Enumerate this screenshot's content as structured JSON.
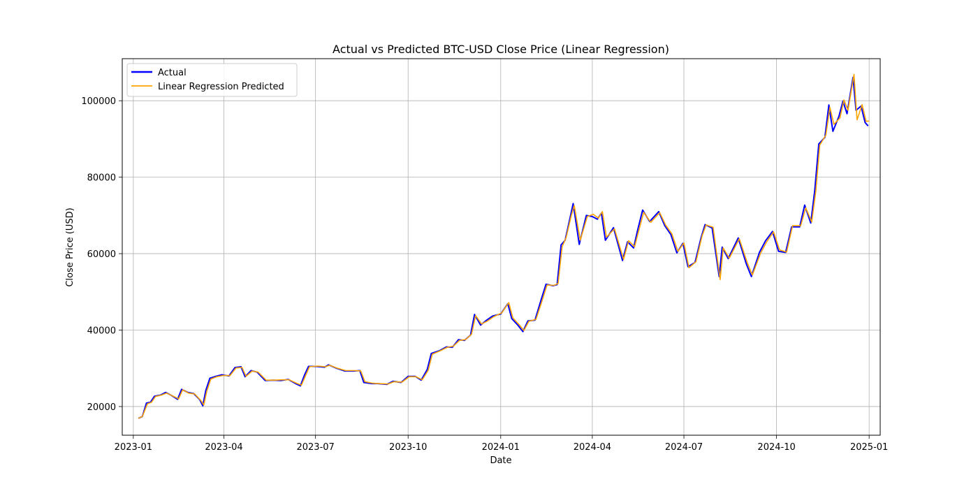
{
  "chart_data": {
    "type": "line",
    "title": "Actual vs Predicted BTC-USD Close Price (Linear Regression)",
    "xlabel": "Date",
    "ylabel": "Close Price (USD)",
    "xlim": [
      "2022-12-21",
      "2025-01-12"
    ],
    "ylim": [
      12500,
      111000
    ],
    "grid": true,
    "legend_position": "top-left",
    "x_ticks": [
      "2023-01",
      "2023-04",
      "2023-07",
      "2023-10",
      "2024-01",
      "2024-04",
      "2024-07",
      "2024-10",
      "2025-01"
    ],
    "y_ticks": [
      20000,
      40000,
      60000,
      80000,
      100000
    ],
    "series": [
      {
        "name": "Actual",
        "color": "#0000ff",
        "points": [
          [
            "2023-01-06",
            16900
          ],
          [
            "2023-01-10",
            17400
          ],
          [
            "2023-01-14",
            20900
          ],
          [
            "2023-01-18",
            21100
          ],
          [
            "2023-01-22",
            22700
          ],
          [
            "2023-01-28",
            23000
          ],
          [
            "2023-02-02",
            23700
          ],
          [
            "2023-02-08",
            22900
          ],
          [
            "2023-02-14",
            21900
          ],
          [
            "2023-02-18",
            24500
          ],
          [
            "2023-02-24",
            23700
          ],
          [
            "2023-03-02",
            23400
          ],
          [
            "2023-03-08",
            21800
          ],
          [
            "2023-03-11",
            20200
          ],
          [
            "2023-03-14",
            24200
          ],
          [
            "2023-03-18",
            27400
          ],
          [
            "2023-03-24",
            27900
          ],
          [
            "2023-03-30",
            28300
          ],
          [
            "2023-04-06",
            28000
          ],
          [
            "2023-04-12",
            30200
          ],
          [
            "2023-04-18",
            30400
          ],
          [
            "2023-04-22",
            27800
          ],
          [
            "2023-04-28",
            29400
          ],
          [
            "2023-05-04",
            29000
          ],
          [
            "2023-05-12",
            26800
          ],
          [
            "2023-05-20",
            26900
          ],
          [
            "2023-05-28",
            26800
          ],
          [
            "2023-06-04",
            27100
          ],
          [
            "2023-06-12",
            25900
          ],
          [
            "2023-06-16",
            25400
          ],
          [
            "2023-06-20",
            28200
          ],
          [
            "2023-06-24",
            30500
          ],
          [
            "2023-07-02",
            30500
          ],
          [
            "2023-07-10",
            30300
          ],
          [
            "2023-07-14",
            30900
          ],
          [
            "2023-07-22",
            30000
          ],
          [
            "2023-07-30",
            29300
          ],
          [
            "2023-08-08",
            29300
          ],
          [
            "2023-08-14",
            29400
          ],
          [
            "2023-08-18",
            26300
          ],
          [
            "2023-08-26",
            26000
          ],
          [
            "2023-09-01",
            26000
          ],
          [
            "2023-09-10",
            25800
          ],
          [
            "2023-09-16",
            26600
          ],
          [
            "2023-09-24",
            26300
          ],
          [
            "2023-10-01",
            27900
          ],
          [
            "2023-10-08",
            27900
          ],
          [
            "2023-10-14",
            26900
          ],
          [
            "2023-10-20",
            29700
          ],
          [
            "2023-10-24",
            33900
          ],
          [
            "2023-11-01",
            34600
          ],
          [
            "2023-11-08",
            35600
          ],
          [
            "2023-11-14",
            35500
          ],
          [
            "2023-11-20",
            37500
          ],
          [
            "2023-11-26",
            37300
          ],
          [
            "2023-12-02",
            38700
          ],
          [
            "2023-12-06",
            44100
          ],
          [
            "2023-12-12",
            41300
          ],
          [
            "2023-12-18",
            42600
          ],
          [
            "2023-12-24",
            43700
          ],
          [
            "2024-01-01",
            44200
          ],
          [
            "2024-01-08",
            46900
          ],
          [
            "2024-01-12",
            43000
          ],
          [
            "2024-01-18",
            41300
          ],
          [
            "2024-01-23",
            39600
          ],
          [
            "2024-01-28",
            42400
          ],
          [
            "2024-02-04",
            42600
          ],
          [
            "2024-02-10",
            47800
          ],
          [
            "2024-02-15",
            52000
          ],
          [
            "2024-02-22",
            51600
          ],
          [
            "2024-02-26",
            51900
          ],
          [
            "2024-03-01",
            62300
          ],
          [
            "2024-03-05",
            63500
          ],
          [
            "2024-03-10",
            69500
          ],
          [
            "2024-03-13",
            73100
          ],
          [
            "2024-03-19",
            62400
          ],
          [
            "2024-03-26",
            70000
          ],
          [
            "2024-04-01",
            69700
          ],
          [
            "2024-04-06",
            69000
          ],
          [
            "2024-04-10",
            70600
          ],
          [
            "2024-04-14",
            63500
          ],
          [
            "2024-04-22",
            66800
          ],
          [
            "2024-05-01",
            58200
          ],
          [
            "2024-05-06",
            63100
          ],
          [
            "2024-05-12",
            61500
          ],
          [
            "2024-05-16",
            66100
          ],
          [
            "2024-05-21",
            71400
          ],
          [
            "2024-05-28",
            68400
          ],
          [
            "2024-06-06",
            71000
          ],
          [
            "2024-06-12",
            67300
          ],
          [
            "2024-06-18",
            65000
          ],
          [
            "2024-06-24",
            60200
          ],
          [
            "2024-06-30",
            62700
          ],
          [
            "2024-07-05",
            56600
          ],
          [
            "2024-07-12",
            57700
          ],
          [
            "2024-07-18",
            64100
          ],
          [
            "2024-07-22",
            67600
          ],
          [
            "2024-07-29",
            66700
          ],
          [
            "2024-08-05",
            54000
          ],
          [
            "2024-08-08",
            61700
          ],
          [
            "2024-08-14",
            58700
          ],
          [
            "2024-08-24",
            64100
          ],
          [
            "2024-09-01",
            57300
          ],
          [
            "2024-09-06",
            54000
          ],
          [
            "2024-09-14",
            60300
          ],
          [
            "2024-09-20",
            63300
          ],
          [
            "2024-09-27",
            65800
          ],
          [
            "2024-10-03",
            60600
          ],
          [
            "2024-10-10",
            60300
          ],
          [
            "2024-10-16",
            67000
          ],
          [
            "2024-10-24",
            67000
          ],
          [
            "2024-10-29",
            72700
          ],
          [
            "2024-11-04",
            68000
          ],
          [
            "2024-11-08",
            76500
          ],
          [
            "2024-11-12",
            88700
          ],
          [
            "2024-11-18",
            90400
          ],
          [
            "2024-11-22",
            98900
          ],
          [
            "2024-11-26",
            92000
          ],
          [
            "2024-12-02",
            95900
          ],
          [
            "2024-12-06",
            99900
          ],
          [
            "2024-12-10",
            96600
          ],
          [
            "2024-12-16",
            106100
          ],
          [
            "2024-12-19",
            97500
          ],
          [
            "2024-12-24",
            98600
          ],
          [
            "2024-12-28",
            94300
          ],
          [
            "2024-12-31",
            93400
          ]
        ]
      },
      {
        "name": "Linear Regression Predicted",
        "color": "#ffa500",
        "points": [
          [
            "2023-01-06",
            16900
          ],
          [
            "2023-01-10",
            17400
          ],
          [
            "2023-01-15",
            20700
          ],
          [
            "2023-01-19",
            21100
          ],
          [
            "2023-01-23",
            22600
          ],
          [
            "2023-01-29",
            23000
          ],
          [
            "2023-02-03",
            23500
          ],
          [
            "2023-02-09",
            22800
          ],
          [
            "2023-02-15",
            22000
          ],
          [
            "2023-02-19",
            24400
          ],
          [
            "2023-02-25",
            23500
          ],
          [
            "2023-03-03",
            23300
          ],
          [
            "2023-03-09",
            21600
          ],
          [
            "2023-03-12",
            20400
          ],
          [
            "2023-03-15",
            24000
          ],
          [
            "2023-03-19",
            27200
          ],
          [
            "2023-03-25",
            27800
          ],
          [
            "2023-03-31",
            28100
          ],
          [
            "2023-04-07",
            28100
          ],
          [
            "2023-04-13",
            30100
          ],
          [
            "2023-04-19",
            30200
          ],
          [
            "2023-04-23",
            27900
          ],
          [
            "2023-04-29",
            29300
          ],
          [
            "2023-05-05",
            29000
          ],
          [
            "2023-05-13",
            26900
          ],
          [
            "2023-05-21",
            26900
          ],
          [
            "2023-05-29",
            27000
          ],
          [
            "2023-06-05",
            27000
          ],
          [
            "2023-06-13",
            26000
          ],
          [
            "2023-06-17",
            25600
          ],
          [
            "2023-06-21",
            28000
          ],
          [
            "2023-06-25",
            30400
          ],
          [
            "2023-07-03",
            30600
          ],
          [
            "2023-07-11",
            30400
          ],
          [
            "2023-07-15",
            30800
          ],
          [
            "2023-07-23",
            30000
          ],
          [
            "2023-07-31",
            29400
          ],
          [
            "2023-08-09",
            29400
          ],
          [
            "2023-08-15",
            29300
          ],
          [
            "2023-08-19",
            26500
          ],
          [
            "2023-08-27",
            26100
          ],
          [
            "2023-09-02",
            26000
          ],
          [
            "2023-09-11",
            25900
          ],
          [
            "2023-09-17",
            26500
          ],
          [
            "2023-09-25",
            26400
          ],
          [
            "2023-10-02",
            27800
          ],
          [
            "2023-10-09",
            27800
          ],
          [
            "2023-10-15",
            27000
          ],
          [
            "2023-10-21",
            29500
          ],
          [
            "2023-10-25",
            33700
          ],
          [
            "2023-11-02",
            34600
          ],
          [
            "2023-11-09",
            35500
          ],
          [
            "2023-11-15",
            35800
          ],
          [
            "2023-11-21",
            37300
          ],
          [
            "2023-11-27",
            37500
          ],
          [
            "2023-12-03",
            38900
          ],
          [
            "2023-12-07",
            43800
          ],
          [
            "2023-12-13",
            41600
          ],
          [
            "2023-12-19",
            42400
          ],
          [
            "2023-12-25",
            43500
          ],
          [
            "2024-01-02",
            44500
          ],
          [
            "2024-01-09",
            47200
          ],
          [
            "2024-01-13",
            43200
          ],
          [
            "2024-01-19",
            41500
          ],
          [
            "2024-01-24",
            39900
          ],
          [
            "2024-01-29",
            42300
          ],
          [
            "2024-02-05",
            42800
          ],
          [
            "2024-02-11",
            47600
          ],
          [
            "2024-02-16",
            51800
          ],
          [
            "2024-02-23",
            51700
          ],
          [
            "2024-02-27",
            52200
          ],
          [
            "2024-03-02",
            61800
          ],
          [
            "2024-03-06",
            64200
          ],
          [
            "2024-03-11",
            69800
          ],
          [
            "2024-03-14",
            72600
          ],
          [
            "2024-03-20",
            63500
          ],
          [
            "2024-03-27",
            69700
          ],
          [
            "2024-04-02",
            70300
          ],
          [
            "2024-04-07",
            69300
          ],
          [
            "2024-04-11",
            71000
          ],
          [
            "2024-04-15",
            64300
          ],
          [
            "2024-04-23",
            66500
          ],
          [
            "2024-05-02",
            58500
          ],
          [
            "2024-05-07",
            63400
          ],
          [
            "2024-05-13",
            61800
          ],
          [
            "2024-05-17",
            65900
          ],
          [
            "2024-05-22",
            70800
          ],
          [
            "2024-05-29",
            68200
          ],
          [
            "2024-06-07",
            70700
          ],
          [
            "2024-06-13",
            67400
          ],
          [
            "2024-06-19",
            65200
          ],
          [
            "2024-06-25",
            60600
          ],
          [
            "2024-07-01",
            62800
          ],
          [
            "2024-07-06",
            56300
          ],
          [
            "2024-07-13",
            57900
          ],
          [
            "2024-07-19",
            64600
          ],
          [
            "2024-07-23",
            67500
          ],
          [
            "2024-07-30",
            66900
          ],
          [
            "2024-08-06",
            53200
          ],
          [
            "2024-08-09",
            61500
          ],
          [
            "2024-08-15",
            58800
          ],
          [
            "2024-08-25",
            63900
          ],
          [
            "2024-09-02",
            57600
          ],
          [
            "2024-09-07",
            54400
          ],
          [
            "2024-09-15",
            60000
          ],
          [
            "2024-09-21",
            63000
          ],
          [
            "2024-09-28",
            65700
          ],
          [
            "2024-10-04",
            61000
          ],
          [
            "2024-10-11",
            60400
          ],
          [
            "2024-10-17",
            67300
          ],
          [
            "2024-10-25",
            67300
          ],
          [
            "2024-10-30",
            72000
          ],
          [
            "2024-11-05",
            68300
          ],
          [
            "2024-11-09",
            76300
          ],
          [
            "2024-11-13",
            88400
          ],
          [
            "2024-11-19",
            91000
          ],
          [
            "2024-11-23",
            98300
          ],
          [
            "2024-11-27",
            93800
          ],
          [
            "2024-12-03",
            95500
          ],
          [
            "2024-12-07",
            100200
          ],
          [
            "2024-12-11",
            97500
          ],
          [
            "2024-12-17",
            106900
          ],
          [
            "2024-12-20",
            95000
          ],
          [
            "2024-12-25",
            99000
          ],
          [
            "2024-12-29",
            94600
          ],
          [
            "2025-01-01",
            94700
          ]
        ]
      }
    ]
  }
}
